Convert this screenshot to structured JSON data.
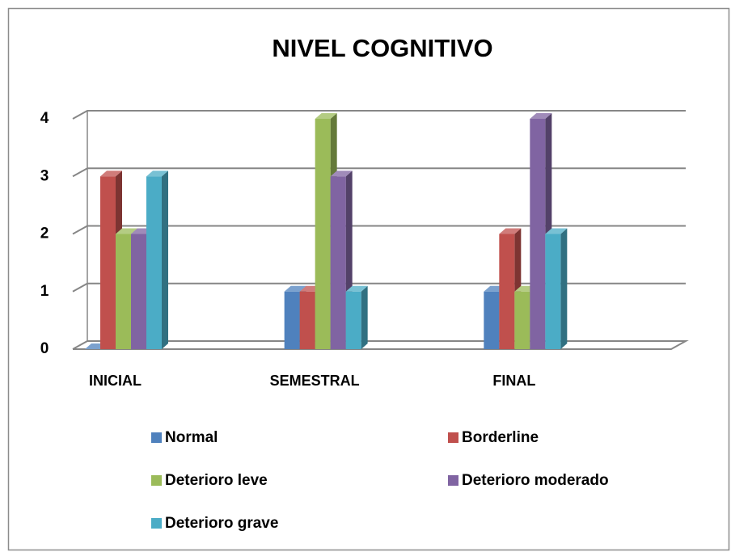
{
  "chart_data": {
    "type": "bar3d",
    "title": "NIVEL COGNITIVO",
    "categories": [
      "INICIAL",
      "SEMESTRAL",
      "FINAL"
    ],
    "series": [
      {
        "name": "Normal",
        "color": "#4f81bd",
        "values": [
          0,
          1,
          1
        ]
      },
      {
        "name": "Borderline",
        "color": "#c0504d",
        "values": [
          3,
          1,
          2
        ]
      },
      {
        "name": "Deterioro leve",
        "color": "#9bbb59",
        "values": [
          2,
          4,
          1
        ]
      },
      {
        "name": "Deterioro moderado",
        "color": "#8064a2",
        "values": [
          2,
          3,
          4
        ]
      },
      {
        "name": "Deterioro grave",
        "color": "#4bacc6",
        "values": [
          3,
          1,
          2
        ]
      }
    ],
    "ylim": [
      0,
      4
    ],
    "yticks": [
      0,
      1,
      2,
      3,
      4
    ],
    "grid": true,
    "legend": "bottom"
  }
}
